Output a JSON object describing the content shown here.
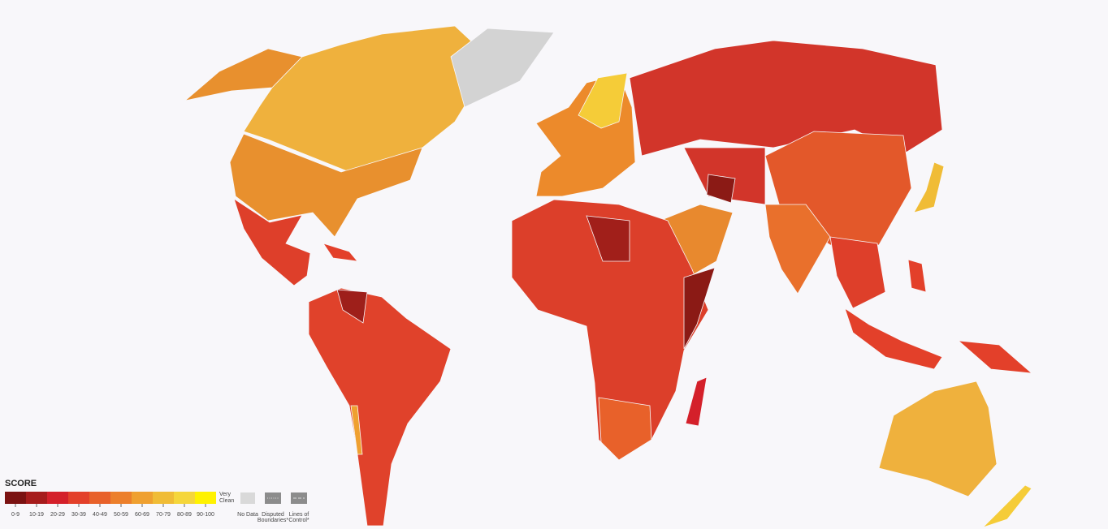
{
  "legend": {
    "title": "SCORE",
    "bins": [
      {
        "label": "0-9",
        "color": "#7b1212"
      },
      {
        "label": "10-19",
        "color": "#a61c1c"
      },
      {
        "label": "20-29",
        "color": "#d4202a"
      },
      {
        "label": "30-39",
        "color": "#e3402a"
      },
      {
        "label": "40-49",
        "color": "#e8612a"
      },
      {
        "label": "50-59",
        "color": "#ec7f2b"
      },
      {
        "label": "60-69",
        "color": "#efa030"
      },
      {
        "label": "70-79",
        "color": "#f0bc36"
      },
      {
        "label": "80-89",
        "color": "#f5d63b"
      },
      {
        "label": "90-100",
        "color": "#fff200"
      }
    ],
    "high_label": [
      "Very",
      "Clean"
    ],
    "no_data": "No Data",
    "disputed": [
      "Disputed",
      "Boundaries*"
    ],
    "lines_of_control": [
      "Lines of",
      "Control*"
    ]
  }
}
